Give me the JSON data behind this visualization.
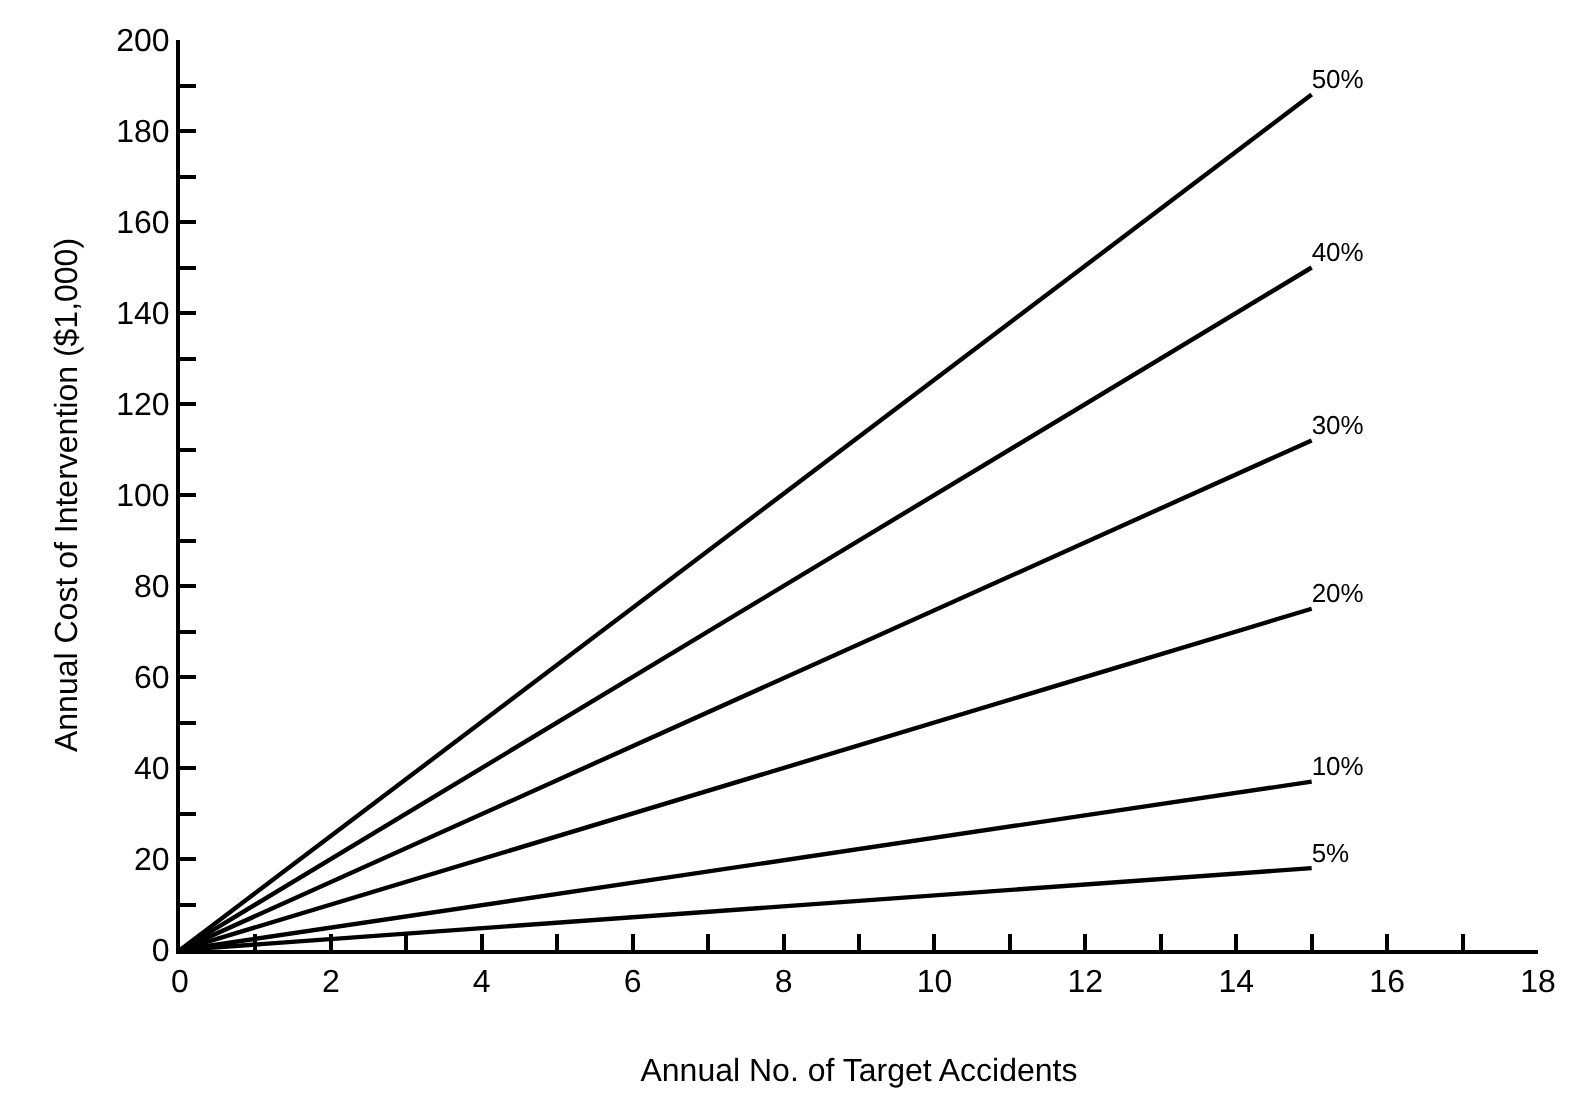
{
  "chart_data": {
    "type": "line",
    "xlabel": "Annual No. of Target Accidents",
    "ylabel": "Annual Cost of Intervention ($1,000)",
    "x": [
      0,
      15
    ],
    "series": [
      {
        "name": "50%",
        "color": "#000000",
        "values": [
          0,
          188
        ]
      },
      {
        "name": "40%",
        "color": "#000000",
        "values": [
          0,
          150
        ]
      },
      {
        "name": "30%",
        "color": "#000000",
        "values": [
          0,
          112
        ]
      },
      {
        "name": "20%",
        "color": "#000000",
        "values": [
          0,
          75
        ]
      },
      {
        "name": "10%",
        "color": "#000000",
        "values": [
          0,
          37
        ]
      },
      {
        "name": "5%",
        "color": "#000000",
        "values": [
          0,
          18
        ]
      }
    ],
    "xlim": [
      0,
      18
    ],
    "xticks": [
      0,
      2,
      4,
      6,
      8,
      10,
      12,
      14,
      16,
      18
    ],
    "ylim": [
      0,
      200
    ],
    "yticks": [
      0,
      20,
      40,
      60,
      80,
      100,
      120,
      140,
      160,
      180,
      200
    ],
    "legend": false,
    "marker": "none",
    "line_style": "solid"
  }
}
